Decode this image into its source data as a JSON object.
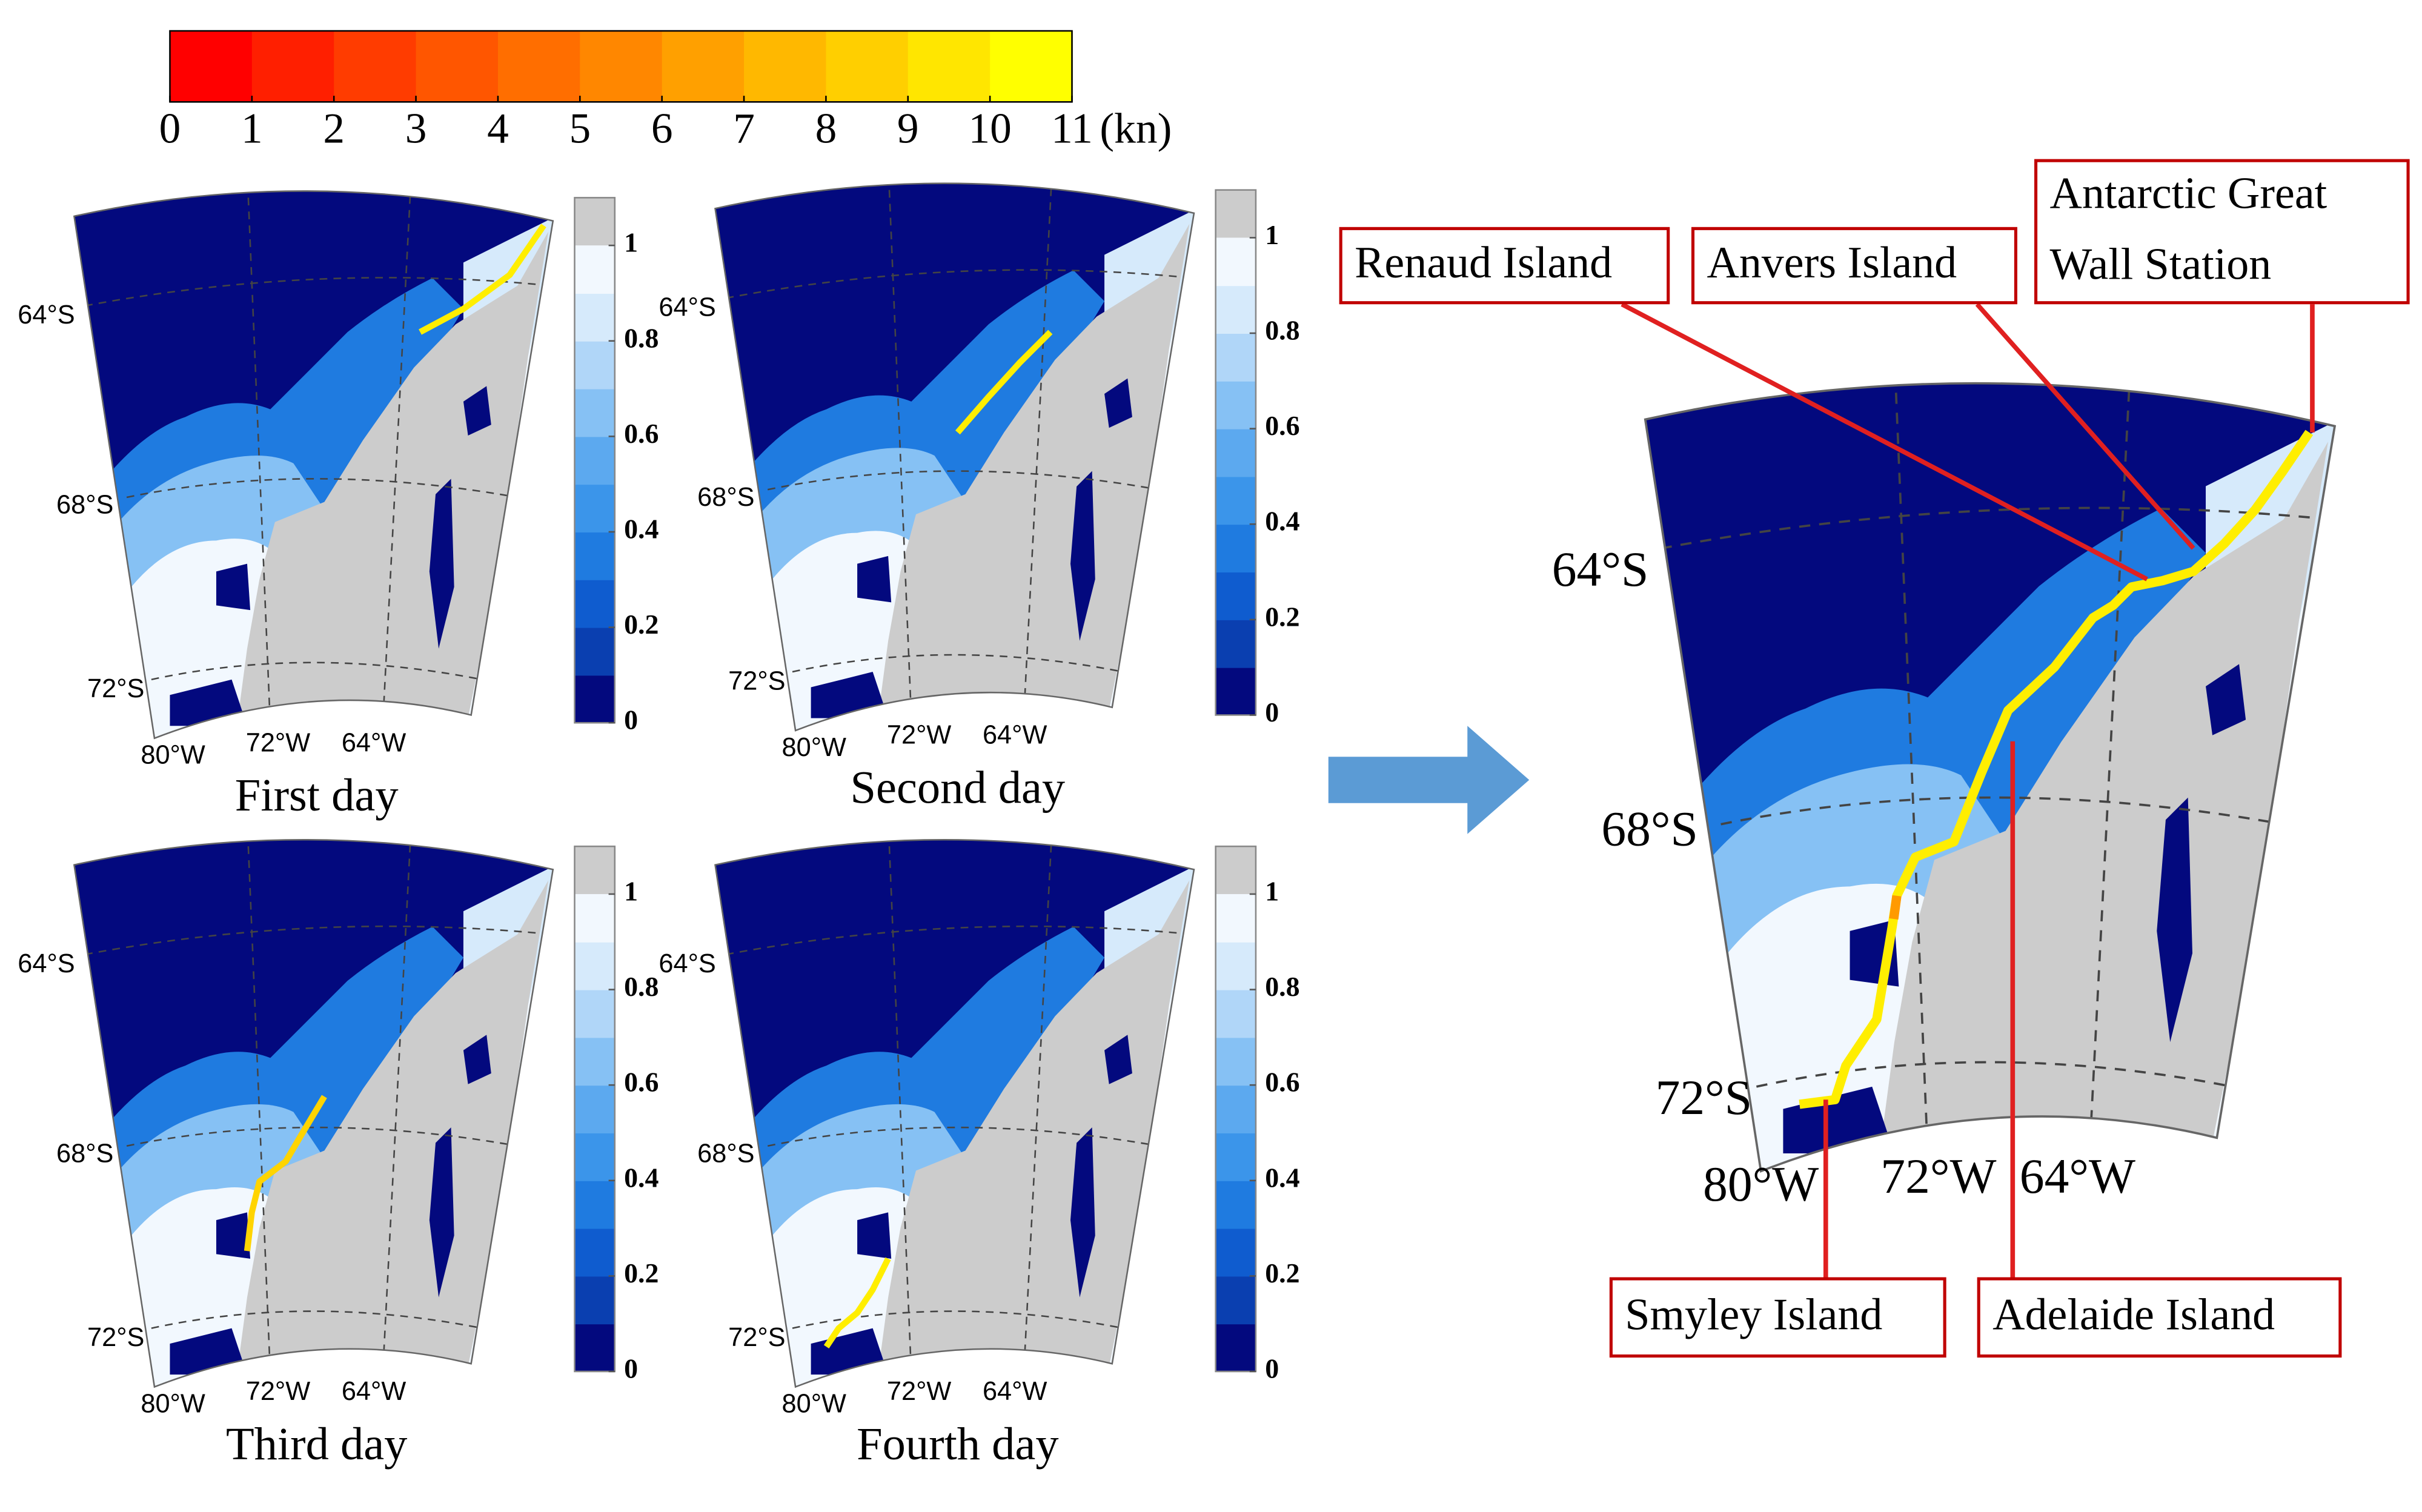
{
  "speed_colorbar": {
    "colors": [
      "#ff0000",
      "#ff1f00",
      "#ff3c00",
      "#ff5600",
      "#ff6e00",
      "#ff8700",
      "#ffa000",
      "#ffb800",
      "#ffcf00",
      "#ffe600",
      "#ffff00"
    ],
    "lim": [
      0,
      11
    ],
    "ticks": [
      0,
      1,
      2,
      3,
      4,
      5,
      6,
      7,
      8,
      9,
      10,
      11
    ],
    "unit": "(kn)"
  },
  "ice_colorbar": {
    "colors": [
      "#03097e",
      "#0a3fb0",
      "#0f5ccf",
      "#1f7be0",
      "#3b95ea",
      "#5ca9ef",
      "#86c1f4",
      "#b0d6f8",
      "#d6eafb",
      "#f2f8fe"
    ],
    "land_color": "#cccccc",
    "lim": [
      0,
      1.1
    ],
    "ticks": [
      0,
      0.2,
      0.4,
      0.6,
      0.8,
      1
    ]
  },
  "panels": [
    {
      "title": "First day",
      "lat_labels": [
        "64°S",
        "68°S",
        "72°S"
      ],
      "lon_labels": [
        "80°W",
        "72°W",
        "64°W"
      ]
    },
    {
      "title": "Second day",
      "lat_labels": [
        "64°S",
        "68°S",
        "72°S"
      ],
      "lon_labels": [
        "80°W",
        "72°W",
        "64°W"
      ]
    },
    {
      "title": "Third day",
      "lat_labels": [
        "64°S",
        "68°S",
        "72°S"
      ],
      "lon_labels": [
        "80°W",
        "72°W",
        "64°W"
      ]
    },
    {
      "title": "Fourth day",
      "lat_labels": [
        "64°S",
        "68°S",
        "72°S"
      ],
      "lon_labels": [
        "80°W",
        "72°W",
        "64°W"
      ]
    }
  ],
  "main_map": {
    "lat_labels": [
      "64°S",
      "68°S",
      "72°S"
    ],
    "lon_labels": [
      "80°W",
      "72°W",
      "64°W"
    ],
    "annotations": [
      {
        "lines": [
          "Renaud Island"
        ]
      },
      {
        "lines": [
          "Anvers Island"
        ]
      },
      {
        "lines": [
          "Antarctic Great",
          "Wall Station"
        ]
      },
      {
        "lines": [
          "Smyley Island"
        ]
      },
      {
        "lines": [
          "Adelaide Island"
        ]
      }
    ]
  }
}
